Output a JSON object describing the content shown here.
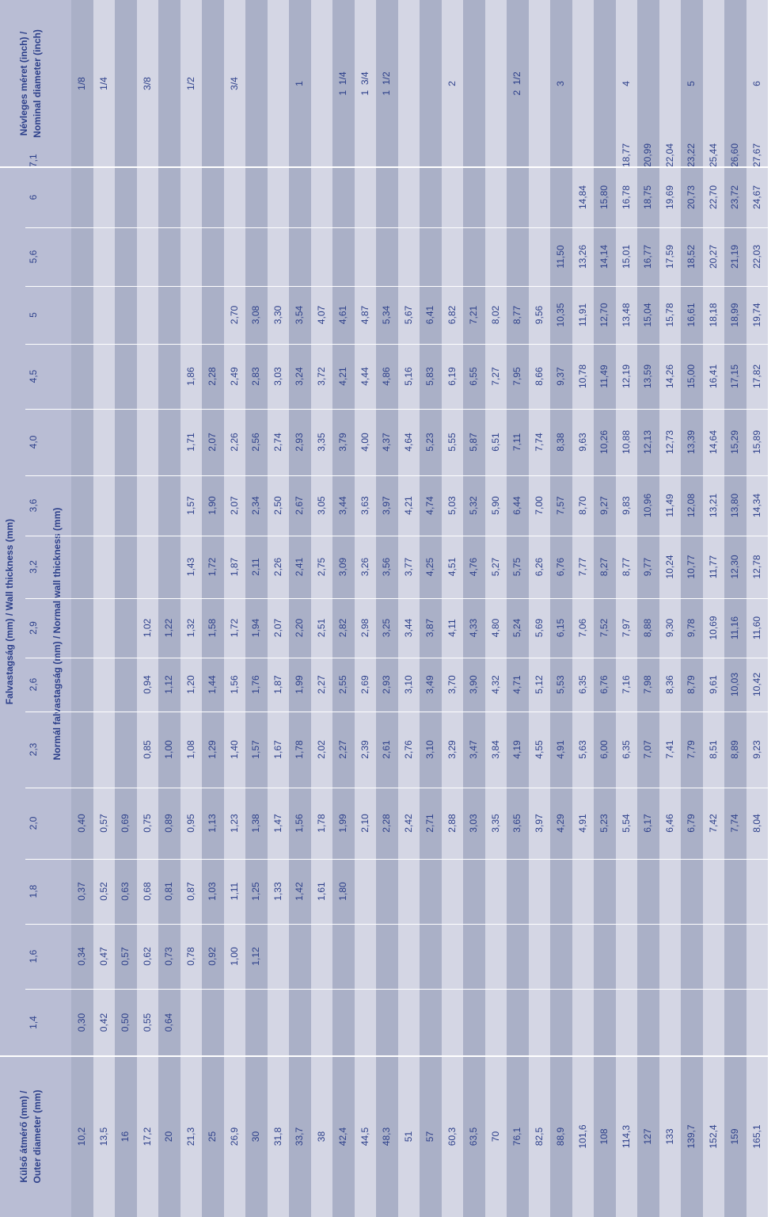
{
  "headers": {
    "outer_diameter": [
      "Külső átmérő (mm) /",
      "Outer diameter (mm)"
    ],
    "wall_thickness": "Falvastagság (mm) /  Wall thickness (mm)",
    "normal_wall": "Normál falvastagság (mm) / Normal wall thickness (mm)",
    "nominal": [
      "Névleges méret (inch) /",
      "Nominal diameter (inch)"
    ]
  },
  "thicknesses": [
    "1,4",
    "1,6",
    "1,8",
    "2,0",
    "2,3",
    "2,6",
    "2,9",
    "3,2",
    "3,6",
    "4,0",
    "4,5",
    "5",
    "5,6",
    "6",
    "7,1"
  ],
  "rows": [
    {
      "od": "10,2",
      "v": [
        "0,30",
        "0,34",
        "0,37",
        "0,40",
        "",
        "",
        "",
        "",
        "",
        "",
        "",
        "",
        "",
        "",
        ""
      ],
      "nom": "1/8"
    },
    {
      "od": "13,5",
      "v": [
        "0,42",
        "0,47",
        "0,52",
        "0,57",
        "",
        "",
        "",
        "",
        "",
        "",
        "",
        "",
        "",
        "",
        ""
      ],
      "nom": "1/4"
    },
    {
      "od": "16",
      "v": [
        "0,50",
        "0,57",
        "0,63",
        "0,69",
        "",
        "",
        "",
        "",
        "",
        "",
        "",
        "",
        "",
        "",
        ""
      ],
      "nom": ""
    },
    {
      "od": "17,2",
      "v": [
        "0,55",
        "0,62",
        "0,68",
        "0,75",
        "0,85",
        "0,94",
        "1,02",
        "",
        "",
        "",
        "",
        "",
        "",
        "",
        ""
      ],
      "nom": "3/8"
    },
    {
      "od": "20",
      "v": [
        "0,64",
        "0,73",
        "0,81",
        "0,89",
        "1,00",
        "1,12",
        "1,22",
        "",
        "",
        "",
        "",
        "",
        "",
        "",
        ""
      ],
      "nom": ""
    },
    {
      "od": "21,3",
      "v": [
        "",
        "0,78",
        "0,87",
        "0,95",
        "1,08",
        "1,20",
        "1,32",
        "1,43",
        "1,57",
        "1,71",
        "1,86",
        "",
        "",
        "",
        ""
      ],
      "nom": "1/2"
    },
    {
      "od": "25",
      "v": [
        "",
        "0,92",
        "1,03",
        "1,13",
        "1,29",
        "1,44",
        "1,58",
        "1,72",
        "1,90",
        "2,07",
        "2,28",
        "",
        "",
        "",
        ""
      ],
      "nom": ""
    },
    {
      "od": "26,9",
      "v": [
        "",
        "1,00",
        "1,11",
        "1,23",
        "1,40",
        "1,56",
        "1,72",
        "1,87",
        "2,07",
        "2,26",
        "2,49",
        "2,70",
        "",
        "",
        ""
      ],
      "nom": "3/4"
    },
    {
      "od": "30",
      "v": [
        "",
        "1,12",
        "1,25",
        "1,38",
        "1,57",
        "1,76",
        "1,94",
        "2,11",
        "2,34",
        "2,56",
        "2,83",
        "3,08",
        "",
        "",
        ""
      ],
      "nom": ""
    },
    {
      "od": "31,8",
      "v": [
        "",
        "",
        "1,33",
        "1,47",
        "1,67",
        "1,87",
        "2,07",
        "2,26",
        "2,50",
        "2,74",
        "3,03",
        "3,30",
        "",
        "",
        ""
      ],
      "nom": ""
    },
    {
      "od": "33,7",
      "v": [
        "",
        "",
        "1,42",
        "1,56",
        "1,78",
        "1,99",
        "2,20",
        "2,41",
        "2,67",
        "2,93",
        "3,24",
        "3,54",
        "",
        "",
        ""
      ],
      "nom": "1"
    },
    {
      "od": "38",
      "v": [
        "",
        "",
        "1,61",
        "1,78",
        "2,02",
        "2,27",
        "2,51",
        "2,75",
        "3,05",
        "3,35",
        "3,72",
        "4,07",
        "",
        "",
        ""
      ],
      "nom": ""
    },
    {
      "od": "42,4",
      "v": [
        "",
        "",
        "1,80",
        "1,99",
        "2,27",
        "2,55",
        "2,82",
        "3,09",
        "3,44",
        "3,79",
        "4,21",
        "4,61",
        "",
        "",
        ""
      ],
      "nom": "1  1/4"
    },
    {
      "od": "44,5",
      "v": [
        "",
        "",
        "",
        "2,10",
        "2,39",
        "2,69",
        "2,98",
        "3,26",
        "3,63",
        "4,00",
        "4,44",
        "4,87",
        "",
        "",
        ""
      ],
      "nom": "1  3/4"
    },
    {
      "od": "48,3",
      "v": [
        "",
        "",
        "",
        "2,28",
        "2,61",
        "2,93",
        "3,25",
        "3,56",
        "3,97",
        "4,37",
        "4,86",
        "5,34",
        "",
        "",
        ""
      ],
      "nom": "1  1/2"
    },
    {
      "od": "51",
      "v": [
        "",
        "",
        "",
        "2,42",
        "2,76",
        "3,10",
        "3,44",
        "3,77",
        "4,21",
        "4,64",
        "5,16",
        "5,67",
        "",
        "",
        ""
      ],
      "nom": ""
    },
    {
      "od": "57",
      "v": [
        "",
        "",
        "",
        "2,71",
        "3,10",
        "3,49",
        "3,87",
        "4,25",
        "4,74",
        "5,23",
        "5,83",
        "6,41",
        "",
        "",
        ""
      ],
      "nom": ""
    },
    {
      "od": "60,3",
      "v": [
        "",
        "",
        "",
        "2,88",
        "3,29",
        "3,70",
        "4,11",
        "4,51",
        "5,03",
        "5,55",
        "6,19",
        "6,82",
        "",
        "",
        ""
      ],
      "nom": "2"
    },
    {
      "od": "63,5",
      "v": [
        "",
        "",
        "",
        "3,03",
        "3,47",
        "3,90",
        "4,33",
        "4,76",
        "5,32",
        "5,87",
        "6,55",
        "7,21",
        "",
        "",
        ""
      ],
      "nom": ""
    },
    {
      "od": "70",
      "v": [
        "",
        "",
        "",
        "3,35",
        "3,84",
        "4,32",
        "4,80",
        "5,27",
        "5,90",
        "6,51",
        "7,27",
        "8,02",
        "",
        "",
        ""
      ],
      "nom": ""
    },
    {
      "od": "76,1",
      "v": [
        "",
        "",
        "",
        "3,65",
        "4,19",
        "4,71",
        "5,24",
        "5,75",
        "6,44",
        "7,11",
        "7,95",
        "8,77",
        "",
        "",
        ""
      ],
      "nom": "2  1/2"
    },
    {
      "od": "82,5",
      "v": [
        "",
        "",
        "",
        "3,97",
        "4,55",
        "5,12",
        "5,69",
        "6,26",
        "7,00",
        "7,74",
        "8,66",
        "9,56",
        "",
        "",
        ""
      ],
      "nom": ""
    },
    {
      "od": "88,9",
      "v": [
        "",
        "",
        "",
        "4,29",
        "4,91",
        "5,53",
        "6,15",
        "6,76",
        "7,57",
        "8,38",
        "9,37",
        "10,35",
        "11,50",
        "",
        ""
      ],
      "nom": "3"
    },
    {
      "od": "101,6",
      "v": [
        "",
        "",
        "",
        "4,91",
        "5,63",
        "6,35",
        "7,06",
        "7,77",
        "8,70",
        "9,63",
        "10,78",
        "11,91",
        "13,26",
        "14,84",
        ""
      ],
      "nom": ""
    },
    {
      "od": "108",
      "v": [
        "",
        "",
        "",
        "5,23",
        "6,00",
        "6,76",
        "7,52",
        "8,27",
        "9,27",
        "10,26",
        "11,49",
        "12,70",
        "14,14",
        "15,80",
        ""
      ],
      "nom": ""
    },
    {
      "od": "114,3",
      "v": [
        "",
        "",
        "",
        "5,54",
        "6,35",
        "7,16",
        "7,97",
        "8,77",
        "9,83",
        "10,88",
        "12,19",
        "13,48",
        "15,01",
        "16,78",
        "18,77"
      ],
      "nom": "4"
    },
    {
      "od": "127",
      "v": [
        "",
        "",
        "",
        "6,17",
        "7,07",
        "7,98",
        "8,88",
        "9,77",
        "10,96",
        "12,13",
        "13,59",
        "15,04",
        "16,77",
        "18,75",
        "20,99"
      ],
      "nom": ""
    },
    {
      "od": "133",
      "v": [
        "",
        "",
        "",
        "6,46",
        "7,41",
        "8,36",
        "9,30",
        "10,24",
        "11,49",
        "12,73",
        "14,26",
        "15,78",
        "17,59",
        "19,69",
        "22,04"
      ],
      "nom": ""
    },
    {
      "od": "139,7",
      "v": [
        "",
        "",
        "",
        "6,79",
        "7,79",
        "8,79",
        "9,78",
        "10,77",
        "12,08",
        "13,39",
        "15,00",
        "16,61",
        "18,52",
        "20,73",
        "23,22"
      ],
      "nom": "5"
    },
    {
      "od": "152,4",
      "v": [
        "",
        "",
        "",
        "7,42",
        "8,51",
        "9,61",
        "10,69",
        "11,77",
        "13,21",
        "14,64",
        "16,41",
        "18,18",
        "20,27",
        "22,70",
        "25,44"
      ],
      "nom": ""
    },
    {
      "od": "159",
      "v": [
        "",
        "",
        "",
        "7,74",
        "8,89",
        "10,03",
        "11,16",
        "12,30",
        "13,80",
        "15,29",
        "17,15",
        "18,99",
        "21,19",
        "23,72",
        "26,60"
      ],
      "nom": ""
    },
    {
      "od": "165,1",
      "v": [
        "",
        "",
        "",
        "8,04",
        "9,23",
        "10,42",
        "11,60",
        "12,78",
        "14,34",
        "15,89",
        "17,82",
        "19,74",
        "22,03",
        "24,67",
        "27,67"
      ],
      "nom": "6"
    }
  ]
}
